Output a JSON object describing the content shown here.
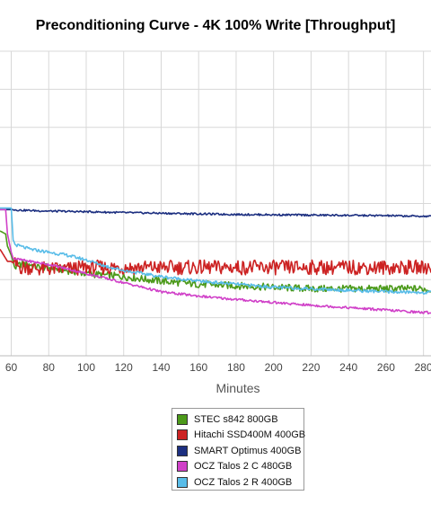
{
  "chart_data": {
    "type": "line",
    "title": "Preconditioning Curve - 4K 100% Write [Throughput]",
    "xlabel": "Minutes",
    "ylabel": "",
    "xlim": [
      54,
      284
    ],
    "ylim": [
      0,
      100
    ],
    "x_ticks": [
      60,
      80,
      100,
      120,
      140,
      160,
      180,
      200,
      220,
      240,
      260,
      280
    ],
    "grid": true,
    "legend_position": "bottom-center",
    "series": [
      {
        "name": "STEC s842 800GB",
        "color": "#4c9a1a",
        "x": [
          54,
          57,
          58,
          60,
          62,
          65,
          70,
          75,
          80,
          90,
          100,
          110,
          120,
          140,
          160,
          180,
          200,
          220,
          240,
          260,
          280,
          284
        ],
        "y": [
          41,
          40,
          36,
          33,
          29,
          30,
          30,
          29,
          29,
          28,
          27,
          26.5,
          26,
          24.5,
          23.5,
          23,
          22.5,
          22,
          22,
          22,
          22,
          21.5
        ],
        "noise": 1.2
      },
      {
        "name": "Hitachi SSD400M 400GB",
        "color": "#cc2222",
        "x": [
          54,
          56,
          58,
          60,
          62,
          65,
          70,
          75,
          80,
          90,
          100,
          110,
          120,
          140,
          160,
          180,
          200,
          220,
          240,
          260,
          280,
          284
        ],
        "y": [
          35,
          33,
          31,
          31,
          30,
          29,
          29,
          28.5,
          28.5,
          28.5,
          29,
          29,
          29,
          29,
          29,
          29,
          29,
          29,
          29,
          29,
          29,
          29
        ],
        "noise": 2.4
      },
      {
        "name": "SMART Optimus 400GB",
        "color": "#1c2f80",
        "x": [
          54,
          60,
          65,
          80,
          100,
          120,
          140,
          160,
          180,
          200,
          220,
          240,
          260,
          280,
          284
        ],
        "y": [
          48,
          48,
          47.8,
          47.5,
          47.3,
          47,
          46.8,
          46.6,
          46.4,
          46.3,
          46.2,
          46.1,
          46,
          45.8,
          45.8
        ],
        "noise": 0.3
      },
      {
        "name": "OCZ Talos 2 C 480GB",
        "color": "#d040c8",
        "x": [
          54,
          57,
          58,
          60,
          61,
          65,
          70,
          80,
          90,
          100,
          110,
          120,
          130,
          140,
          150,
          160,
          170,
          180,
          190,
          200,
          210,
          220,
          230,
          240,
          250,
          260,
          270,
          280,
          284
        ],
        "y": [
          48,
          48,
          40,
          34,
          32,
          31.5,
          31,
          30,
          28.5,
          27,
          25.5,
          24,
          22.5,
          21,
          20.3,
          19.6,
          19,
          18.5,
          18,
          17.5,
          17,
          16.6,
          16.2,
          15.8,
          15.4,
          15,
          14.6,
          14.2,
          14.2
        ],
        "noise": 0.4
      },
      {
        "name": "OCZ Talos 2 R 400GB",
        "color": "#58bce8",
        "x": [
          54,
          60,
          61,
          62,
          70,
          80,
          90,
          100,
          110,
          120,
          140,
          160,
          180,
          200,
          220,
          240,
          260,
          280,
          284
        ],
        "y": [
          48.5,
          48.5,
          38,
          36.5,
          35,
          34,
          33,
          31.5,
          29.5,
          28,
          26,
          24.5,
          23.5,
          22.5,
          22,
          21.5,
          21,
          20.8,
          20.8
        ],
        "noise": 0.5
      }
    ]
  }
}
